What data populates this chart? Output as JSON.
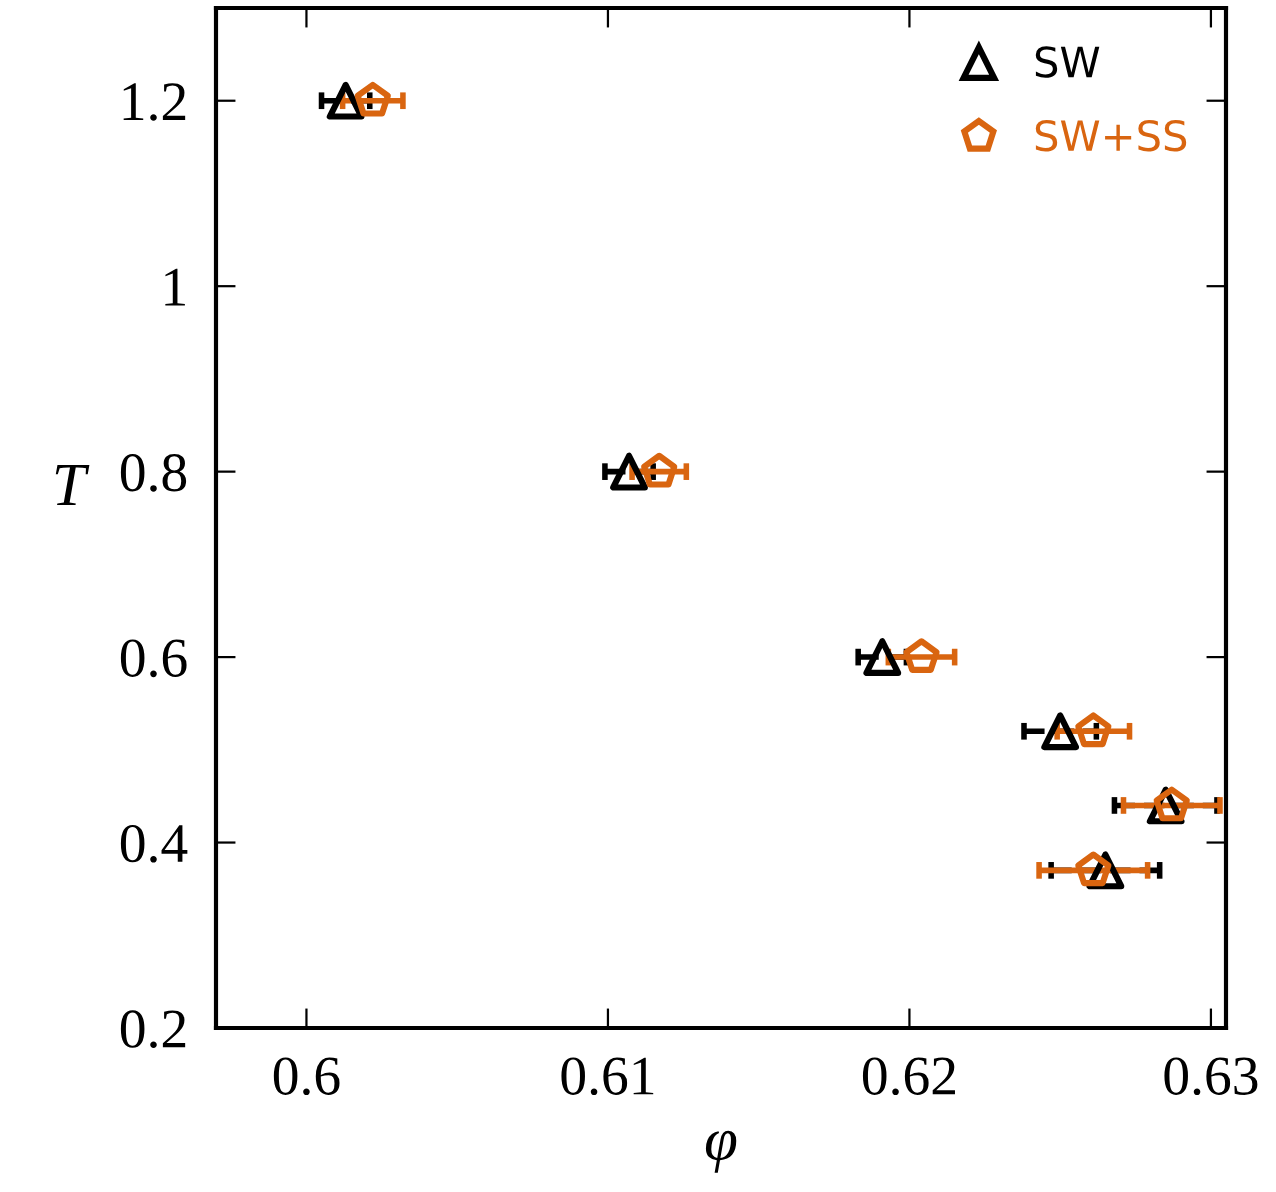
{
  "chart_data": {
    "type": "scatter",
    "xlabel": "φ",
    "ylabel": "T",
    "xlim": [
      0.597,
      0.6305
    ],
    "ylim": [
      0.2,
      1.3
    ],
    "xticks": [
      0.6,
      0.61,
      0.62,
      0.63
    ],
    "yticks": [
      {
        "value": 0.2,
        "label": "0.2"
      },
      {
        "value": 0.4,
        "label": "0.4"
      },
      {
        "value": 0.6,
        "label": "0.6"
      },
      {
        "value": 0.8,
        "label": "0.8"
      },
      {
        "value": 1.0,
        "label": "1"
      },
      {
        "value": 1.2,
        "label": "1.2"
      }
    ],
    "grid": false,
    "legend": "top right",
    "series": [
      {
        "name": "SW",
        "color": "#000000",
        "marker": "triangle",
        "line_style": "dashed",
        "x": [
          0.6013,
          0.6107,
          0.6191,
          0.625,
          0.6285,
          0.6265
        ],
        "values": [
          1.2,
          0.8,
          0.6,
          0.52,
          0.44,
          0.37
        ],
        "xerrors": [
          0.0008,
          0.0008,
          0.0008,
          0.0012,
          0.0017,
          0.0018
        ]
      },
      {
        "name": "SW+SS",
        "color": "#d96510",
        "line_style": "solid",
        "x": [
          0.6022,
          0.6117,
          0.6204,
          0.6261,
          0.6287,
          0.6261
        ],
        "values": [
          1.2,
          0.8,
          0.6,
          0.52,
          0.44,
          0.37
        ],
        "xerrors": [
          0.001,
          0.0009,
          0.0011,
          0.0012,
          0.0016,
          0.0018
        ]
      }
    ]
  }
}
